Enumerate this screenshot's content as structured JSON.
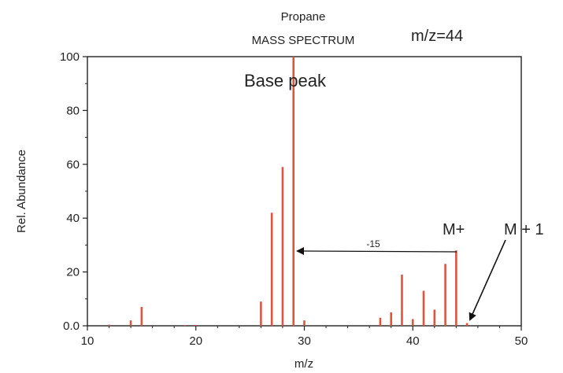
{
  "chart_data": {
    "type": "bar",
    "title": "Propane",
    "subtitle": "MASS SPECTRUM",
    "xlabel": "m/z",
    "ylabel": "Rel. Abundance",
    "xlim": [
      10,
      50
    ],
    "ylim": [
      0,
      100
    ],
    "xticks": [
      "10",
      "20",
      "30",
      "40",
      "50"
    ],
    "yticks": [
      "0.0",
      "20",
      "40",
      "60",
      "80",
      "100"
    ],
    "grid": false,
    "series": [
      {
        "x": [
          12,
          14,
          15,
          19,
          20,
          26,
          27,
          28,
          29,
          30,
          37,
          38,
          39,
          40,
          41,
          42,
          43,
          44,
          45
        ],
        "values": [
          0.4,
          2,
          7,
          0.3,
          0.3,
          9,
          42,
          59,
          100,
          2,
          3,
          5,
          19,
          2.5,
          13,
          6,
          23,
          28,
          1
        ]
      }
    ],
    "annotations": {
      "mz_label": "m/z=44",
      "base_peak": "Base peak",
      "m_plus": "M+",
      "m_plus_one": "M + 1",
      "loss": "-15"
    }
  },
  "colors": {
    "bar": "#e0533c",
    "axis": "#222222",
    "annotation": "#111111"
  }
}
